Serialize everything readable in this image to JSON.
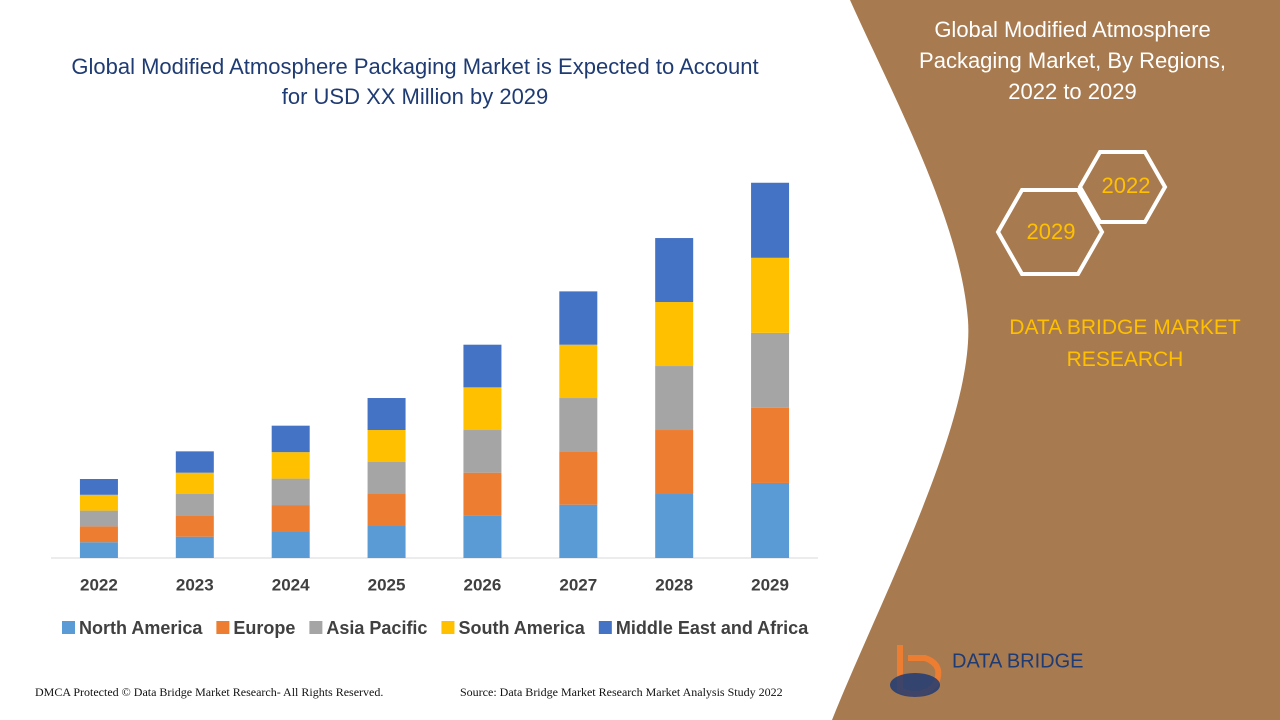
{
  "chart_data": {
    "type": "stacked-bar",
    "title": "Global Modified Atmosphere Packaging Market is Expected to Account for USD XX Million by 2029",
    "categories": [
      "2022",
      "2023",
      "2024",
      "2025",
      "2026",
      "2027",
      "2028",
      "2029"
    ],
    "series": [
      {
        "name": "North America",
        "color": "#5b9bd5",
        "values": [
          4,
          5.4,
          6.7,
          8.1,
          10.8,
          13.5,
          16.2,
          19
        ]
      },
      {
        "name": "Europe",
        "color": "#ed7d31",
        "values": [
          4,
          5.4,
          6.7,
          8.1,
          10.8,
          13.5,
          16.2,
          19
        ]
      },
      {
        "name": "Asia Pacific",
        "color": "#a5a5a5",
        "values": [
          4,
          5.4,
          6.7,
          8.1,
          10.8,
          13.5,
          16.2,
          19
        ]
      },
      {
        "name": "South America",
        "color": "#ffc000",
        "values": [
          4,
          5.4,
          6.7,
          8.1,
          10.8,
          13.5,
          16.2,
          19
        ]
      },
      {
        "name": "Middle East and Africa",
        "color": "#4472c4",
        "values": [
          4,
          5.4,
          6.7,
          8.1,
          10.8,
          13.5,
          16.2,
          19
        ]
      }
    ],
    "ylim": [
      0,
      100
    ]
  },
  "panel": {
    "title": "Global Modified Atmosphere Packaging Market, By Regions, 2022 to 2029",
    "badges": [
      "2022",
      "2029"
    ],
    "brand": "DATA BRIDGE MARKET RESEARCH"
  },
  "logo": "DATA BRIDGE",
  "footer": {
    "left": "DMCA Protected © Data Bridge Market Research- All Rights Reserved.",
    "right": "Source: Data Bridge Market Research Market Analysis Study 2022"
  }
}
